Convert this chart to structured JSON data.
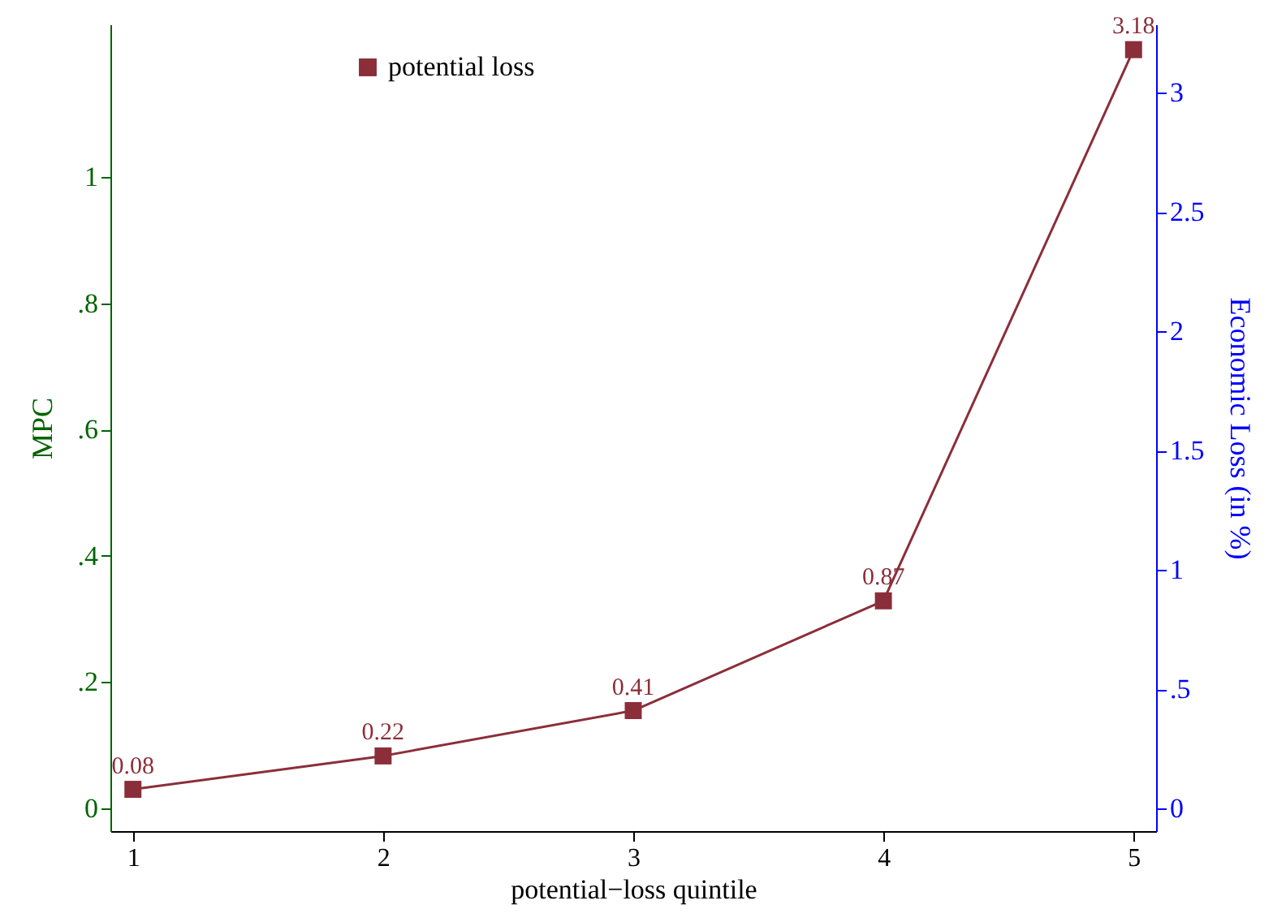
{
  "chart_data": {
    "type": "line",
    "xlabel": "potential−loss quintile",
    "ylabel": "MPC",
    "y2label": "Economic Loss (in %)",
    "x": [
      1,
      2,
      3,
      4,
      5
    ],
    "series": [
      {
        "name": "potential loss",
        "color": "#8b2e3a",
        "axis": "y2",
        "values": [
          0.08,
          0.22,
          0.41,
          0.87,
          3.18
        ]
      }
    ],
    "xlim": [
      0.91,
      5.09
    ],
    "xticks": [
      1,
      2,
      3,
      4,
      5
    ],
    "ylim": [
      -0.036,
      1.242
    ],
    "yticks": [
      0,
      {
        "value": 0.2,
        "label": ".2"
      },
      {
        "value": 0.4,
        "label": ".4"
      },
      {
        "value": 0.6,
        "label": ".6"
      },
      {
        "value": 0.8,
        "label": ".8"
      },
      1
    ],
    "y2lim": [
      -0.095,
      3.286
    ],
    "y2ticks": [
      0,
      {
        "value": 0.5,
        "label": ".5"
      },
      1,
      1.5,
      2,
      2.5,
      3
    ],
    "data_labels": true,
    "marker": "square",
    "line_style": "solid",
    "legend": "top",
    "grid": false
  }
}
